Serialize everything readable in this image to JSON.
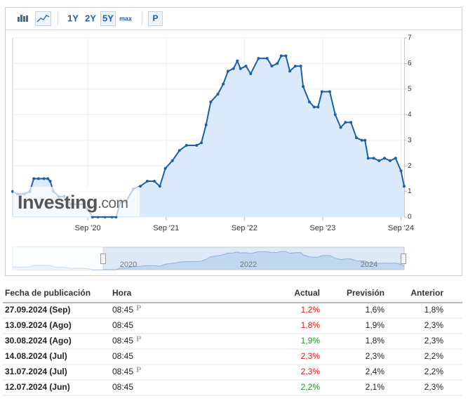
{
  "toolbar": {
    "ranges": [
      "1Y",
      "2Y",
      "5Y",
      "max"
    ],
    "active": "5Y",
    "extra": "P"
  },
  "chart_data": {
    "type": "line",
    "color": "#1f5fa8",
    "area_color": "#d6e8fb",
    "x": [
      2019.71,
      2019.77,
      2019.86,
      2019.93,
      2019.98,
      2020.04,
      2020.11,
      2020.16,
      2020.19,
      2020.23,
      2020.3,
      2020.37,
      2020.45,
      2020.54,
      2020.61,
      2020.67,
      2020.73,
      2020.8,
      2020.89,
      2020.98,
      2021.03,
      2021.09,
      2021.16,
      2021.25,
      2021.34,
      2021.43,
      2021.52,
      2021.59,
      2021.66,
      2021.75,
      2021.84,
      2021.93,
      2022.06,
      2022.12,
      2022.18,
      2022.24,
      2022.33,
      2022.4,
      2022.46,
      2022.53,
      2022.58,
      2022.62,
      2022.69,
      2022.75,
      2022.85,
      2022.96,
      2023.02,
      2023.09,
      2023.14,
      2023.2,
      2023.25,
      2023.32,
      2023.39,
      2023.42,
      2023.5,
      2023.56,
      2023.61,
      2023.66,
      2023.76,
      2023.83,
      2023.9,
      2023.96,
      2024.03,
      2024.1,
      2024.17,
      2024.21,
      2024.25,
      2024.32,
      2024.39,
      2024.46,
      2024.53,
      2024.6,
      2024.67,
      2024.71
    ],
    "values": [
      1.0,
      0.9,
      0.9,
      1.0,
      1.5,
      1.5,
      1.5,
      1.5,
      1.4,
      1.0,
      0.8,
      0.8,
      0.5,
      0.5,
      0.5,
      0.3,
      0.0,
      0.0,
      0.0,
      0.0,
      0.0,
      0.6,
      0.6,
      1.1,
      1.2,
      1.4,
      1.4,
      1.2,
      1.9,
      2.2,
      2.6,
      2.8,
      2.8,
      2.9,
      3.6,
      4.5,
      4.8,
      5.2,
      5.7,
      5.8,
      6.1,
      5.8,
      5.9,
      5.6,
      6.2,
      6.2,
      5.9,
      6.0,
      6.3,
      6.3,
      5.7,
      5.9,
      5.9,
      5.1,
      4.5,
      4.3,
      4.3,
      4.9,
      4.9,
      4.0,
      3.5,
      3.7,
      3.7,
      3.1,
      3.0,
      3.0,
      2.3,
      2.3,
      2.2,
      2.3,
      2.2,
      2.3,
      1.8,
      1.2
    ],
    "xlim": [
      2019.71,
      2024.71
    ],
    "xticks": [
      {
        "value": 2020.67,
        "label": "Sep '20"
      },
      {
        "value": 2021.67,
        "label": "Sep '21"
      },
      {
        "value": 2022.67,
        "label": "Sep '22"
      },
      {
        "value": 2023.67,
        "label": "Sep '23"
      },
      {
        "value": 2024.67,
        "label": "Sep '24"
      }
    ],
    "ylim": [
      0,
      7
    ],
    "yticks": [
      0,
      1,
      2,
      3,
      4,
      5,
      6,
      7
    ],
    "grid": true,
    "watermark": "Investing",
    "watermark_suffix": ".com"
  },
  "navigator": {
    "labels": [
      "2020",
      "2022",
      "2024"
    ]
  },
  "table": {
    "header": [
      "Fecha de publicación",
      "Hora",
      "Actual",
      "Previsión",
      "Anterior"
    ],
    "rows": [
      [
        "27.09.2024 (Sep)",
        "08:45",
        "1,2%",
        "1,6%",
        "1,8%"
      ],
      [
        "13.09.2024 (Ago)",
        "08:45",
        "1,8%",
        "1,9%",
        "2,3%"
      ],
      [
        "30.08.2024 (Ago)",
        "08:45",
        "1,9%",
        "1,8%",
        "2,3%"
      ],
      [
        "14.08.2024 (Jul)",
        "08:45",
        "2,3%",
        "2,3%",
        "2,2%"
      ],
      [
        "31.07.2024 (Jul)",
        "08:45",
        "2,3%",
        "2,4%",
        "2,2%"
      ],
      [
        "12.07.2024 (Jun)",
        "08:45",
        "2,2%",
        "2,1%",
        "2,3%"
      ]
    ],
    "markers": [
      "P",
      null,
      "P",
      null,
      "P",
      null
    ],
    "actual_colors": [
      "#e01b1b",
      "#e01b1b",
      "#1f9a1f",
      "#e01b1b",
      "#e01b1b",
      "#1f9a1f"
    ]
  }
}
